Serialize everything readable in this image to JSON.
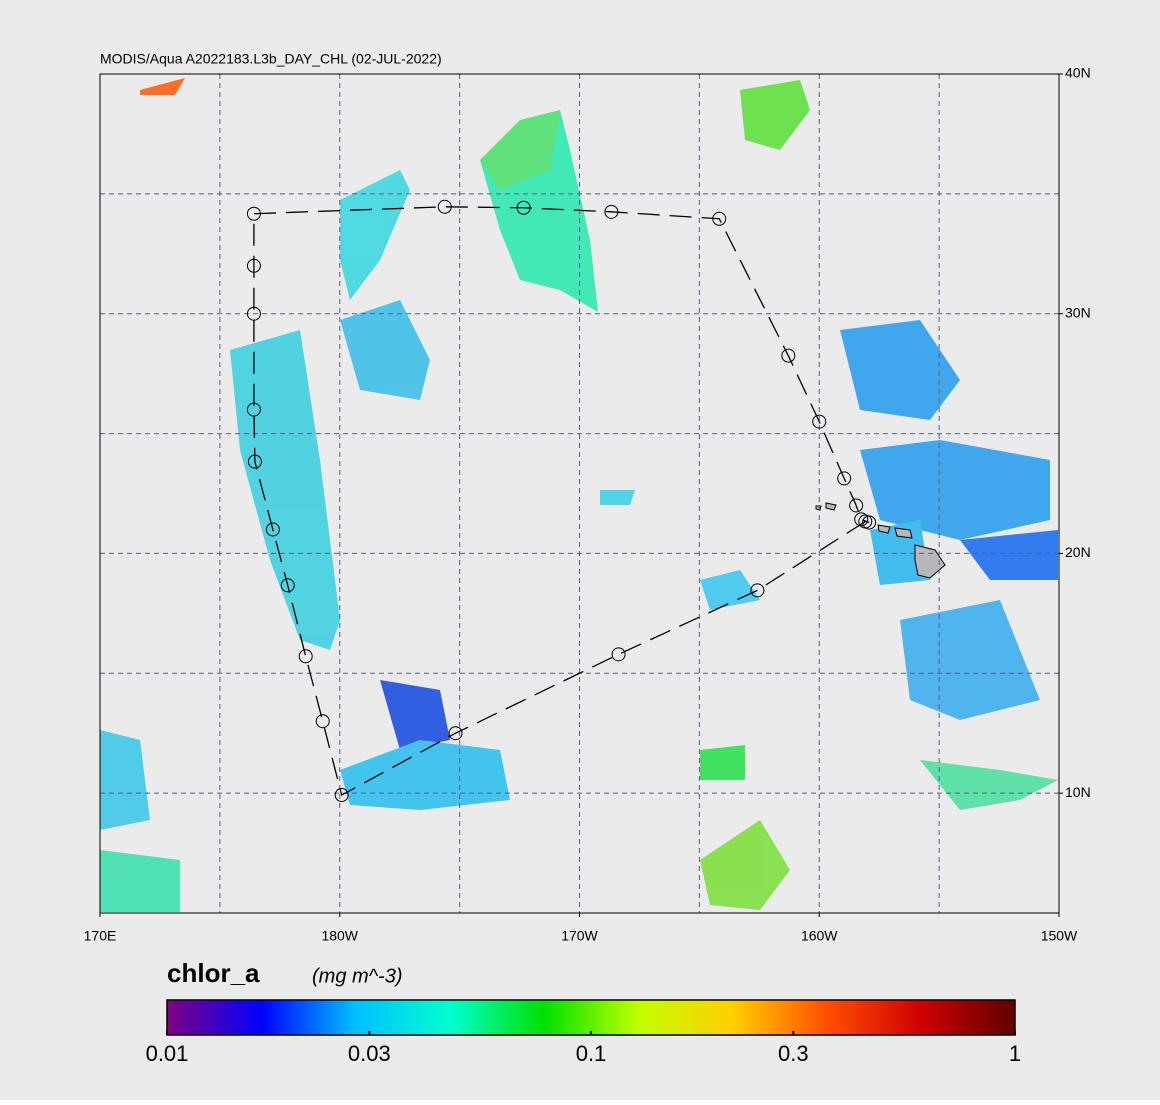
{
  "map": {
    "title": "MODIS/Aqua A2022183.L3b_DAY_CHL (02-JUL-2022)",
    "lonlim": [
      170,
      210
    ],
    "latlim": [
      5,
      40
    ],
    "lon_ticks": [
      {
        "value": 170,
        "label": "170E"
      },
      {
        "value": 180,
        "label": "180W"
      },
      {
        "value": 190,
        "label": "170W"
      },
      {
        "value": 200,
        "label": "160W"
      },
      {
        "value": 210,
        "label": "150W"
      }
    ],
    "lat_ticks": [
      {
        "value": 40,
        "label": "40N"
      },
      {
        "value": 30,
        "label": "30N"
      },
      {
        "value": 20,
        "label": "20N"
      },
      {
        "value": 10,
        "label": "10N"
      }
    ],
    "lon_grid": [
      175,
      180,
      185,
      190,
      195,
      200,
      205
    ],
    "lat_grid": [
      10,
      15,
      20,
      25,
      30,
      35
    ],
    "track": {
      "lon": [
        201.92,
        197.42,
        191.63,
        184.83,
        180.08,
        179.29,
        178.58,
        177.83,
        177.21,
        176.46,
        176.42,
        176.42,
        176.42,
        176.42,
        184.38,
        187.67,
        191.33,
        195.83,
        198.71,
        200.0,
        201.04,
        201.54,
        201.75,
        202.08
      ],
      "lat": [
        21.33,
        18.46,
        15.79,
        12.5,
        9.92,
        13.0,
        15.71,
        18.67,
        21.0,
        23.83,
        26.0,
        30.0,
        32.0,
        34.17,
        34.46,
        34.42,
        34.25,
        33.96,
        28.25,
        25.5,
        23.13,
        22.0,
        21.42,
        21.29
      ]
    },
    "colorbar": {
      "label": "chlor_a",
      "units": "(mg m^-3)",
      "lim": [
        0.01,
        1
      ],
      "ticks": [
        0.01,
        0.03,
        0.1,
        0.3,
        1
      ],
      "log": true,
      "colors": [
        "#800080",
        "#0000ff",
        "#00bfff",
        "#00ffd0",
        "#00e000",
        "#c0ff00",
        "#ffd000",
        "#ff5000",
        "#d00000",
        "#600000"
      ]
    }
  }
}
